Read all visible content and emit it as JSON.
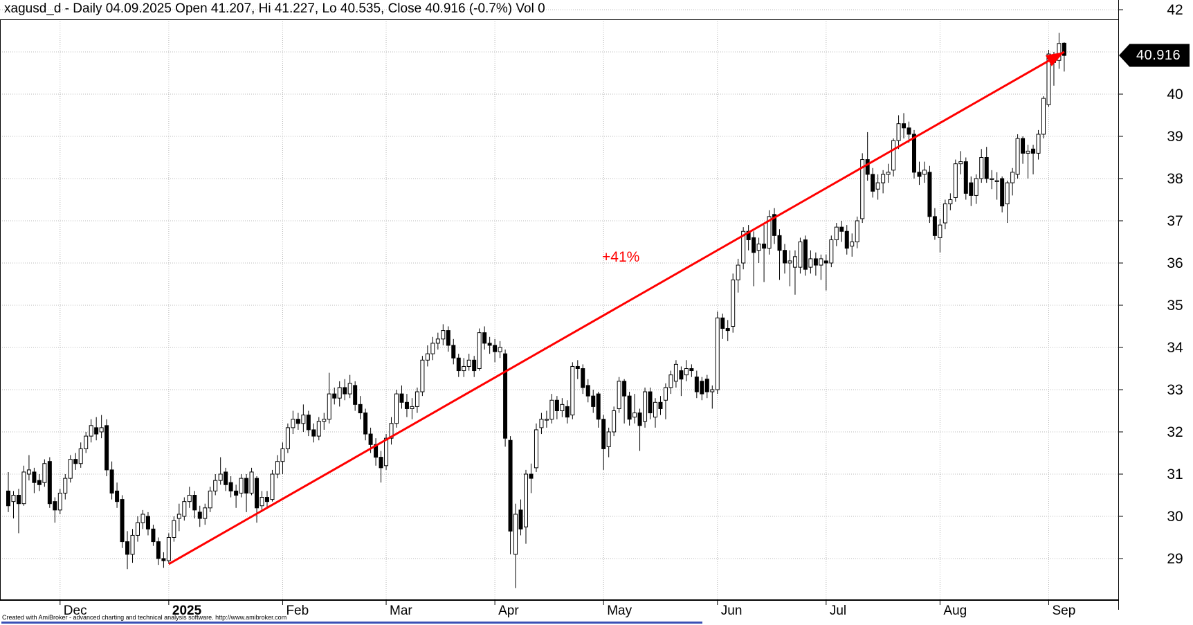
{
  "header": {
    "title": "xagusd_d - Daily 04.09.2025 Open 41.207, Hi 41.227, Lo 40.535, Close 40.916 (-0.7%) Vol 0"
  },
  "footer": {
    "credit": "Created with AmiBroker - advanced charting and technical analysis software. http://www.amibroker.com"
  },
  "last_price_tag": {
    "value": "40.916",
    "bg": "#000000",
    "text_color": "#ffffff"
  },
  "colors": {
    "up_fill": "#ffffff",
    "down_fill": "#000000",
    "outline": "#000000",
    "grid": "#b9b9b9",
    "trend": "#ff0000",
    "axis": "#000000",
    "bottom_bar": "#3a50b5"
  },
  "chart_data": {
    "type": "candlestick",
    "symbol": "xagusd_d",
    "timeframe": "Daily",
    "last_bar": {
      "date": "04.09.2025",
      "open": 41.207,
      "high": 41.227,
      "low": 40.535,
      "close": 40.916,
      "change_pct": "-0.7%",
      "volume": 0
    },
    "title": "xagusd_d - Daily 04.09.2025 Open 41.207, Hi 41.227, Lo 40.535, Close 40.916 (-0.7%) Vol 0",
    "y_axis": {
      "ticks": [
        42,
        40,
        39,
        38,
        37,
        36,
        35,
        34,
        33,
        32,
        31,
        30,
        29
      ],
      "hidden_tick_behind_price_label": 41,
      "grid": true
    },
    "x_axis": {
      "labels": [
        {
          "label": "Dec",
          "start_index": 10,
          "bold": false
        },
        {
          "label": "2025",
          "start_index": 31,
          "bold": true
        },
        {
          "label": "Feb",
          "start_index": 53,
          "bold": false
        },
        {
          "label": "Mar",
          "start_index": 73,
          "bold": false
        },
        {
          "label": "Apr",
          "start_index": 94,
          "bold": false
        },
        {
          "label": "May",
          "start_index": 115,
          "bold": false
        },
        {
          "label": "Jun",
          "start_index": 137,
          "bold": false
        },
        {
          "label": "Jul",
          "start_index": 158,
          "bold": false
        },
        {
          "label": "Aug",
          "start_index": 180,
          "bold": false
        },
        {
          "label": "Sep",
          "start_index": 201,
          "bold": false
        }
      ]
    },
    "trendline": {
      "label": "+41%",
      "color": "#ff0000",
      "start_index": 31,
      "start_price": 28.87,
      "end_index": 204,
      "end_price": 41.0
    },
    "candles_format": [
      "open",
      "high",
      "low",
      "close"
    ],
    "candles": [
      [
        30.6,
        31.05,
        30.1,
        30.25
      ],
      [
        30.35,
        30.6,
        29.95,
        30.5
      ],
      [
        30.5,
        30.65,
        29.6,
        30.3
      ],
      [
        30.3,
        31.2,
        30.25,
        31.05
      ],
      [
        31.0,
        31.45,
        30.85,
        31.1
      ],
      [
        31.05,
        31.15,
        30.55,
        30.8
      ],
      [
        30.85,
        31.0,
        30.6,
        30.75
      ],
      [
        30.8,
        31.35,
        30.7,
        31.25
      ],
      [
        31.3,
        31.4,
        30.2,
        30.3
      ],
      [
        30.35,
        30.45,
        29.85,
        30.15
      ],
      [
        30.15,
        30.65,
        30.05,
        30.55
      ],
      [
        30.55,
        31.0,
        30.4,
        30.9
      ],
      [
        30.9,
        31.45,
        30.8,
        31.35
      ],
      [
        31.35,
        31.5,
        31.1,
        31.25
      ],
      [
        31.25,
        31.75,
        31.15,
        31.6
      ],
      [
        31.6,
        32.0,
        31.5,
        31.9
      ],
      [
        31.9,
        32.3,
        31.75,
        32.15
      ],
      [
        32.1,
        32.35,
        31.8,
        31.95
      ],
      [
        32.0,
        32.4,
        31.85,
        32.1
      ],
      [
        32.15,
        32.3,
        30.95,
        31.1
      ],
      [
        31.1,
        31.3,
        30.4,
        30.55
      ],
      [
        30.6,
        30.8,
        30.2,
        30.35
      ],
      [
        30.4,
        30.5,
        29.25,
        29.4
      ],
      [
        29.4,
        29.65,
        28.75,
        29.1
      ],
      [
        29.1,
        29.7,
        28.9,
        29.55
      ],
      [
        29.55,
        30.0,
        29.4,
        29.85
      ],
      [
        29.85,
        30.15,
        29.7,
        30.05
      ],
      [
        30.0,
        30.1,
        29.55,
        29.7
      ],
      [
        29.7,
        29.8,
        29.3,
        29.4
      ],
      [
        29.4,
        29.5,
        28.85,
        29.0
      ],
      [
        29.0,
        29.15,
        28.78,
        28.95
      ],
      [
        28.95,
        29.6,
        28.87,
        29.5
      ],
      [
        29.5,
        30.0,
        29.4,
        29.9
      ],
      [
        29.95,
        30.3,
        29.65,
        30.05
      ],
      [
        30.0,
        30.45,
        29.9,
        30.35
      ],
      [
        30.35,
        30.7,
        30.2,
        30.5
      ],
      [
        30.5,
        30.6,
        29.95,
        30.15
      ],
      [
        30.1,
        30.25,
        29.75,
        29.95
      ],
      [
        29.95,
        30.3,
        29.8,
        30.2
      ],
      [
        30.2,
        30.7,
        30.1,
        30.6
      ],
      [
        30.6,
        31.0,
        30.5,
        30.85
      ],
      [
        30.85,
        31.4,
        30.75,
        31.0
      ],
      [
        31.05,
        31.15,
        30.6,
        30.75
      ],
      [
        30.8,
        30.95,
        30.45,
        30.6
      ],
      [
        30.6,
        30.75,
        30.2,
        30.5
      ],
      [
        30.55,
        31.0,
        30.45,
        30.9
      ],
      [
        30.9,
        31.0,
        30.1,
        30.55
      ],
      [
        30.55,
        31.15,
        30.5,
        31.05
      ],
      [
        30.9,
        30.95,
        29.85,
        30.2
      ],
      [
        30.25,
        30.6,
        30.1,
        30.45
      ],
      [
        30.45,
        30.6,
        30.2,
        30.35
      ],
      [
        30.4,
        31.1,
        30.35,
        31.0
      ],
      [
        31.0,
        31.45,
        30.9,
        31.3
      ],
      [
        31.3,
        31.75,
        31.0,
        31.6
      ],
      [
        31.6,
        32.2,
        31.5,
        32.1
      ],
      [
        32.1,
        32.5,
        31.95,
        32.3
      ],
      [
        32.3,
        32.45,
        32.05,
        32.2
      ],
      [
        32.2,
        32.65,
        32.0,
        32.4
      ],
      [
        32.4,
        32.5,
        31.9,
        32.05
      ],
      [
        32.05,
        32.2,
        31.75,
        31.9
      ],
      [
        31.9,
        32.35,
        31.8,
        32.25
      ],
      [
        32.25,
        32.45,
        32.05,
        32.3
      ],
      [
        32.3,
        33.4,
        32.2,
        32.9
      ],
      [
        32.9,
        33.05,
        32.65,
        32.8
      ],
      [
        32.8,
        33.2,
        32.6,
        33.05
      ],
      [
        33.05,
        33.25,
        32.75,
        32.9
      ],
      [
        32.9,
        33.35,
        32.8,
        33.15
      ],
      [
        33.1,
        33.2,
        32.5,
        32.65
      ],
      [
        32.65,
        32.85,
        32.3,
        32.45
      ],
      [
        32.45,
        32.55,
        31.8,
        31.95
      ],
      [
        31.95,
        32.1,
        31.5,
        31.7
      ],
      [
        31.7,
        31.85,
        31.2,
        31.4
      ],
      [
        31.4,
        31.55,
        30.8,
        31.15
      ],
      [
        31.2,
        31.95,
        31.1,
        31.85
      ],
      [
        31.85,
        32.35,
        31.7,
        32.2
      ],
      [
        32.2,
        33.0,
        32.1,
        32.9
      ],
      [
        32.9,
        33.1,
        32.55,
        32.7
      ],
      [
        32.7,
        32.9,
        32.35,
        32.55
      ],
      [
        32.55,
        32.8,
        32.3,
        32.6
      ],
      [
        32.6,
        33.05,
        32.45,
        32.95
      ],
      [
        32.95,
        33.8,
        32.85,
        33.7
      ],
      [
        33.7,
        34.05,
        33.55,
        33.85
      ],
      [
        33.85,
        34.25,
        33.7,
        34.1
      ],
      [
        34.1,
        34.35,
        33.95,
        34.2
      ],
      [
        34.2,
        34.55,
        34.05,
        34.4
      ],
      [
        34.4,
        34.5,
        33.9,
        34.05
      ],
      [
        34.05,
        34.2,
        33.6,
        33.75
      ],
      [
        33.75,
        33.85,
        33.3,
        33.45
      ],
      [
        33.45,
        33.75,
        33.3,
        33.55
      ],
      [
        33.55,
        33.85,
        33.45,
        33.7
      ],
      [
        33.7,
        33.8,
        33.3,
        33.45
      ],
      [
        33.5,
        34.45,
        33.45,
        34.35
      ],
      [
        34.35,
        34.5,
        33.95,
        34.1
      ],
      [
        34.1,
        34.25,
        33.85,
        34.05
      ],
      [
        34.05,
        34.2,
        33.65,
        33.9
      ],
      [
        33.9,
        34.15,
        33.75,
        34.0
      ],
      [
        33.85,
        33.95,
        31.65,
        31.85
      ],
      [
        31.8,
        31.9,
        29.1,
        29.65
      ],
      [
        29.1,
        30.3,
        28.3,
        30.05
      ],
      [
        30.15,
        30.4,
        29.55,
        29.7
      ],
      [
        29.75,
        31.1,
        29.35,
        31.0
      ],
      [
        31.0,
        31.25,
        30.55,
        30.9
      ],
      [
        31.15,
        32.2,
        31.05,
        32.05
      ],
      [
        32.1,
        32.45,
        31.95,
        32.3
      ],
      [
        32.3,
        32.5,
        32.1,
        32.3
      ],
      [
        32.3,
        32.9,
        32.2,
        32.75
      ],
      [
        32.75,
        32.85,
        32.3,
        32.5
      ],
      [
        32.5,
        32.8,
        32.35,
        32.65
      ],
      [
        32.6,
        32.75,
        32.2,
        32.35
      ],
      [
        32.4,
        33.65,
        32.3,
        33.55
      ],
      [
        33.55,
        33.7,
        33.25,
        33.5
      ],
      [
        33.5,
        33.6,
        32.9,
        33.05
      ],
      [
        33.1,
        33.25,
        32.7,
        32.85
      ],
      [
        32.85,
        33.0,
        32.45,
        32.6
      ],
      [
        32.9,
        32.95,
        32.1,
        32.3
      ],
      [
        32.3,
        32.4,
        31.1,
        31.6
      ],
      [
        31.65,
        32.1,
        31.4,
        32.0
      ],
      [
        32.0,
        32.6,
        31.9,
        32.5
      ],
      [
        32.55,
        33.3,
        32.45,
        33.2
      ],
      [
        33.2,
        33.25,
        32.2,
        32.85
      ],
      [
        32.85,
        32.95,
        32.15,
        32.3
      ],
      [
        32.35,
        32.9,
        32.2,
        32.45
      ],
      [
        32.45,
        32.55,
        31.55,
        32.15
      ],
      [
        32.25,
        33.05,
        32.1,
        32.95
      ],
      [
        32.95,
        33.05,
        32.3,
        32.45
      ],
      [
        32.35,
        32.8,
        32.1,
        32.7
      ],
      [
        32.7,
        32.85,
        32.4,
        32.55
      ],
      [
        32.75,
        33.15,
        32.3,
        33.05
      ],
      [
        33.05,
        33.45,
        32.9,
        33.35
      ],
      [
        33.2,
        33.7,
        33.05,
        33.6
      ],
      [
        33.45,
        33.55,
        32.85,
        33.25
      ],
      [
        33.35,
        33.7,
        33.2,
        33.5
      ],
      [
        33.5,
        33.6,
        33.3,
        33.45
      ],
      [
        33.3,
        33.45,
        32.8,
        32.95
      ],
      [
        33.2,
        33.3,
        32.75,
        32.9
      ],
      [
        33.25,
        33.35,
        32.8,
        32.95
      ],
      [
        32.95,
        33.1,
        32.55,
        33.0
      ],
      [
        33.0,
        34.85,
        32.9,
        34.7
      ],
      [
        34.7,
        34.8,
        34.2,
        34.45
      ],
      [
        34.45,
        34.65,
        34.15,
        34.4
      ],
      [
        34.5,
        35.75,
        34.35,
        35.6
      ],
      [
        35.6,
        36.1,
        35.3,
        35.95
      ],
      [
        36.0,
        36.85,
        35.85,
        36.75
      ],
      [
        36.75,
        36.9,
        36.3,
        36.55
      ],
      [
        36.6,
        36.75,
        35.45,
        36.25
      ],
      [
        36.3,
        36.6,
        36.0,
        36.45
      ],
      [
        36.45,
        36.9,
        35.55,
        36.35
      ],
      [
        36.35,
        37.25,
        36.2,
        37.1
      ],
      [
        37.15,
        37.3,
        36.45,
        36.65
      ],
      [
        36.65,
        36.8,
        35.6,
        36.3
      ],
      [
        36.3,
        36.45,
        35.75,
        36.0
      ],
      [
        36.0,
        36.3,
        35.45,
        36.05
      ],
      [
        35.9,
        36.3,
        35.25,
        36.15
      ],
      [
        35.9,
        36.6,
        35.75,
        36.5
      ],
      [
        36.55,
        36.65,
        35.7,
        35.85
      ],
      [
        35.9,
        36.3,
        35.75,
        36.1
      ],
      [
        36.1,
        36.25,
        35.7,
        35.95
      ],
      [
        35.95,
        36.2,
        35.6,
        36.1
      ],
      [
        36.05,
        36.2,
        35.35,
        36.0
      ],
      [
        36.0,
        36.65,
        35.9,
        36.55
      ],
      [
        36.55,
        36.95,
        36.4,
        36.85
      ],
      [
        36.85,
        37.0,
        36.5,
        36.75
      ],
      [
        36.75,
        36.9,
        36.2,
        36.35
      ],
      [
        36.4,
        36.7,
        36.15,
        36.5
      ],
      [
        36.5,
        37.1,
        36.35,
        37.0
      ],
      [
        37.05,
        38.6,
        36.95,
        38.45
      ],
      [
        38.45,
        39.1,
        37.95,
        38.1
      ],
      [
        38.1,
        38.25,
        37.55,
        37.7
      ],
      [
        37.75,
        38.1,
        37.5,
        37.9
      ],
      [
        37.9,
        38.2,
        37.65,
        38.1
      ],
      [
        38.1,
        38.35,
        37.9,
        38.15
      ],
      [
        38.2,
        38.95,
        38.05,
        38.9
      ],
      [
        38.9,
        39.5,
        38.7,
        39.3
      ],
      [
        39.3,
        39.55,
        38.95,
        39.2
      ],
      [
        39.2,
        39.35,
        38.85,
        39.05
      ],
      [
        39.05,
        39.15,
        38.0,
        38.15
      ],
      [
        38.15,
        38.4,
        37.85,
        38.05
      ],
      [
        38.1,
        38.4,
        37.9,
        38.2
      ],
      [
        38.15,
        38.3,
        36.95,
        37.1
      ],
      [
        37.1,
        37.3,
        36.55,
        36.65
      ],
      [
        36.6,
        37.05,
        36.25,
        36.9
      ],
      [
        36.95,
        37.5,
        36.8,
        37.4
      ],
      [
        37.4,
        37.65,
        37.25,
        37.5
      ],
      [
        37.55,
        38.45,
        37.45,
        38.35
      ],
      [
        38.35,
        38.65,
        38.1,
        38.4
      ],
      [
        38.4,
        38.5,
        37.5,
        37.65
      ],
      [
        37.9,
        38.05,
        37.35,
        37.6
      ],
      [
        37.6,
        38.1,
        37.4,
        38.0
      ],
      [
        38.0,
        38.7,
        37.9,
        38.5
      ],
      [
        38.5,
        38.75,
        37.9,
        38.0
      ],
      [
        38.0,
        38.2,
        37.75,
        38.0
      ],
      [
        37.95,
        38.15,
        37.5,
        37.95
      ],
      [
        38.0,
        38.05,
        37.2,
        37.35
      ],
      [
        37.4,
        37.95,
        36.95,
        37.9
      ],
      [
        37.9,
        38.25,
        37.6,
        38.15
      ],
      [
        38.1,
        39.05,
        38.0,
        38.95
      ],
      [
        38.95,
        39.0,
        38.35,
        38.6
      ],
      [
        38.6,
        38.8,
        38.0,
        38.65
      ],
      [
        38.7,
        38.8,
        38.1,
        38.6
      ],
      [
        38.6,
        39.15,
        38.45,
        39.05
      ],
      [
        39.05,
        39.95,
        38.95,
        39.9
      ],
      [
        39.75,
        41.05,
        39.7,
        40.95
      ],
      [
        40.75,
        41.0,
        40.2,
        40.9
      ],
      [
        40.8,
        41.45,
        40.6,
        41.2
      ],
      [
        41.207,
        41.227,
        40.535,
        40.916
      ]
    ]
  }
}
